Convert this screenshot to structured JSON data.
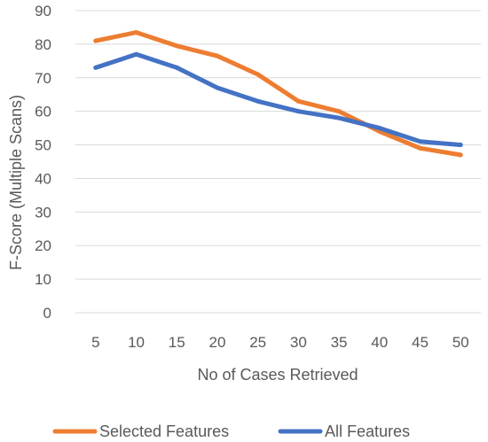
{
  "chart_data": {
    "type": "line",
    "title": "",
    "xlabel": "No of Cases Retrieved",
    "ylabel": "F-Score (Multiple Scans)",
    "categories": [
      "5",
      "10",
      "15",
      "20",
      "25",
      "30",
      "35",
      "40",
      "45",
      "50"
    ],
    "ylim": [
      0,
      90
    ],
    "yticks": [
      0,
      10,
      20,
      30,
      40,
      50,
      60,
      70,
      80,
      90
    ],
    "grid": "horizontal",
    "legend": "bottom",
    "series": [
      {
        "name": "Selected Features",
        "color": "#ED7D31",
        "values": [
          81,
          83.5,
          79.5,
          76.5,
          71,
          63,
          60,
          54,
          49,
          47
        ]
      },
      {
        "name": "All Features",
        "color": "#4472C4",
        "values": [
          73,
          77,
          73,
          67,
          63,
          60,
          58,
          55,
          51,
          50
        ]
      }
    ]
  }
}
